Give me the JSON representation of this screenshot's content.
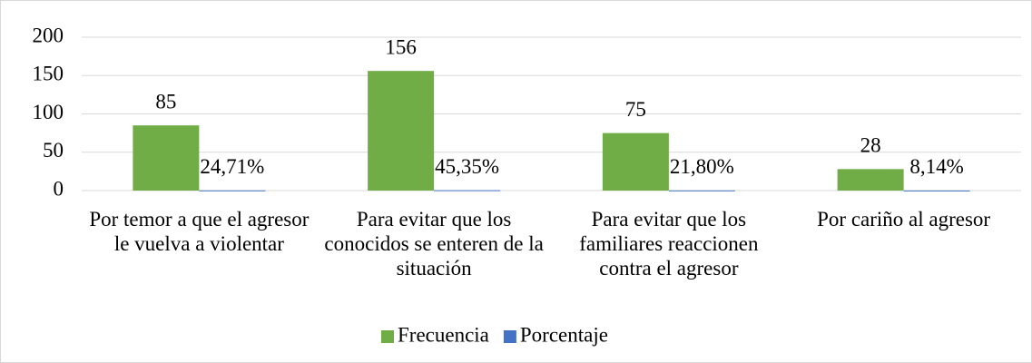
{
  "chart_data": {
    "type": "bar",
    "categories": [
      "Por temor a que el agresor le vuelva a violentar",
      "Para evitar que los conocidos se enteren de la situación",
      "Para evitar que los familiares reaccionen contra el agresor",
      "Por cariño al agresor"
    ],
    "series": [
      {
        "name": "Frecuencia",
        "color": "#70ad47",
        "values": [
          85,
          156,
          75,
          28
        ]
      },
      {
        "name": "Porcentaje",
        "color": "#4472c4",
        "values": [
          0.2471,
          0.4535,
          0.218,
          0.0814
        ],
        "value_labels": [
          "24,71%",
          "45,35%",
          "21,80%",
          "8,14%"
        ]
      }
    ],
    "ylim": [
      0,
      200
    ],
    "yticks": [
      0,
      50,
      100,
      150,
      200
    ],
    "grid": true,
    "legend": "bottom"
  }
}
